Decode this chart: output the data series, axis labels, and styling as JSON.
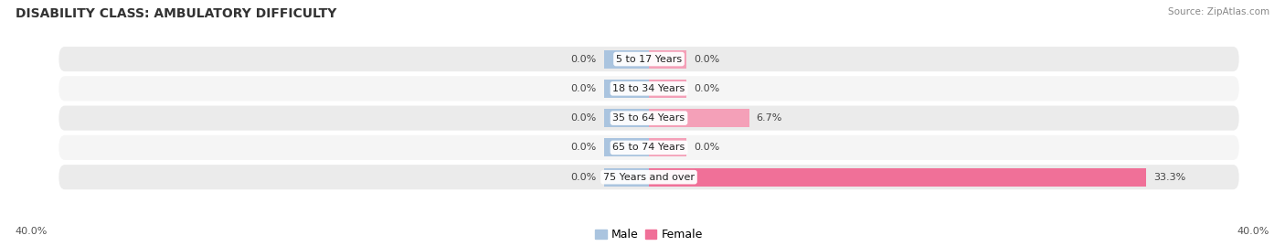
{
  "title": "DISABILITY CLASS: AMBULATORY DIFFICULTY",
  "source": "Source: ZipAtlas.com",
  "categories": [
    "5 to 17 Years",
    "18 to 34 Years",
    "35 to 64 Years",
    "65 to 74 Years",
    "75 Years and over"
  ],
  "male_values": [
    0.0,
    0.0,
    0.0,
    0.0,
    0.0
  ],
  "female_values": [
    0.0,
    0.0,
    6.7,
    0.0,
    33.3
  ],
  "male_color": "#aac4df",
  "female_color": "#f07098",
  "female_color_soft": "#f4a0b8",
  "row_bg_even": "#ebebeb",
  "row_bg_odd": "#f5f5f5",
  "x_min": -40.0,
  "x_max": 40.0,
  "axis_label_left": "40.0%",
  "axis_label_right": "40.0%",
  "title_fontsize": 10,
  "label_fontsize": 8,
  "category_fontsize": 8,
  "source_fontsize": 7.5,
  "background_color": "#ffffff",
  "male_stub": 3.0,
  "female_stub_small": 2.5,
  "female_stub_zero": 2.5
}
